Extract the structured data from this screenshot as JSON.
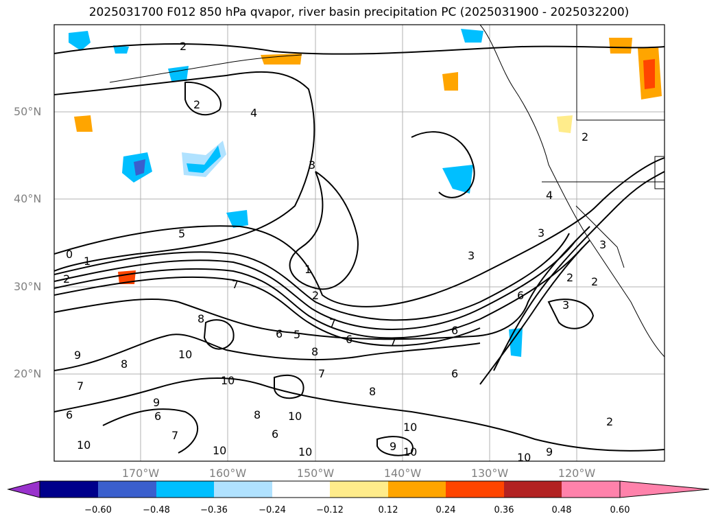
{
  "title": "2025031700 F012 850 hPa qvapor, river basin precipitation PC (2025031900 - 2025032200)",
  "latitude_labels": [
    "50°N",
    "40°N",
    "30°N",
    "20°N"
  ],
  "longitude_labels": [
    "170°W",
    "160°W",
    "150°W",
    "140°W",
    "130°W",
    "120°W"
  ],
  "colorbar": {
    "colors": [
      "#9932cc",
      "#00008b",
      "#3a5fcd",
      "#00bfff",
      "#b0e2ff",
      "#ffffff",
      "#ffec8b",
      "#ffa500",
      "#ff4500",
      "#b22222",
      "#ff82ab"
    ],
    "tick_labels": [
      "−0.60",
      "−0.48",
      "−0.36",
      "−0.24",
      "−0.12",
      "0.12",
      "0.24",
      "0.36",
      "0.48",
      "0.60"
    ]
  },
  "contour_labels": [
    "0",
    "1",
    "2",
    "3",
    "4",
    "5",
    "6",
    "7",
    "8",
    "9",
    "10"
  ]
}
